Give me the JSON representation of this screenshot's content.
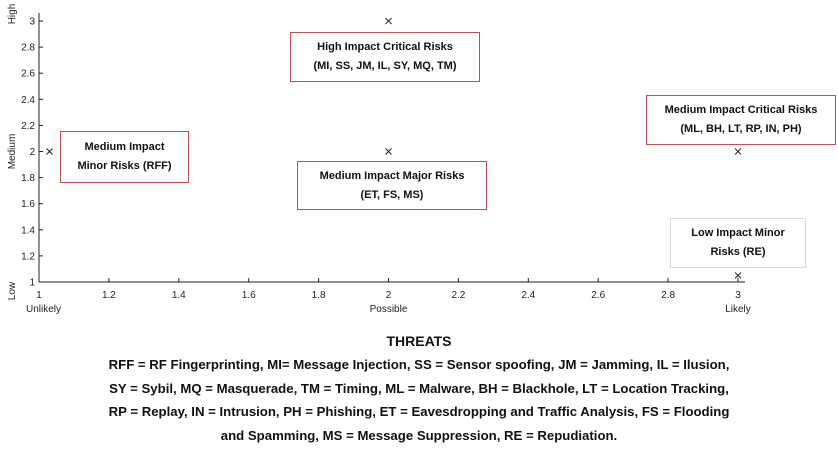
{
  "chart_data": {
    "type": "scatter",
    "title": "",
    "xlabel": "",
    "ylabel": "",
    "xlim": [
      1,
      3
    ],
    "ylim": [
      1,
      3
    ],
    "x_ticks": [
      "1",
      "1.2",
      "1.4",
      "1.6",
      "1.8",
      "2",
      "2.2",
      "2.4",
      "2.6",
      "2.8",
      "3"
    ],
    "y_ticks": [
      "1",
      "1.2",
      "1.4",
      "1.6",
      "1.8",
      "2",
      "2.2",
      "2.4",
      "2.6",
      "2.8",
      "3"
    ],
    "x_category_labels": [
      {
        "value": 1,
        "text": "Unlikely"
      },
      {
        "value": 2,
        "text": "Possible"
      },
      {
        "value": 3,
        "text": "Likely"
      }
    ],
    "y_category_labels": [
      {
        "value": 1,
        "text": "Low"
      },
      {
        "value": 2,
        "text": "Medium"
      },
      {
        "value": 3,
        "text": "High"
      }
    ],
    "grid": false,
    "marker": "x",
    "points": [
      {
        "x": 1.03,
        "y": 2
      },
      {
        "x": 2,
        "y": 3
      },
      {
        "x": 2,
        "y": 2
      },
      {
        "x": 3,
        "y": 2
      },
      {
        "x": 3,
        "y": 1.05
      }
    ],
    "annotations": [
      {
        "lines": [
          "Medium Impact",
          "Minor Risks (RFF)"
        ]
      },
      {
        "lines": [
          "High Impact Critical Risks",
          "(MI, SS, JM, IL, SY, MQ, TM)"
        ]
      },
      {
        "lines": [
          "Medium Impact Major Risks",
          "(ET, FS, MS)"
        ]
      },
      {
        "lines": [
          "Medium Impact Critical Risks",
          "(ML, BH, LT, RP, IN, PH)"
        ]
      },
      {
        "lines": [
          "Low Impact Minor",
          "Risks (RE)"
        ]
      }
    ]
  },
  "colors": {
    "annotation_border": "#c0504d",
    "annotation_border_plain": "#d9d9d9",
    "axis": "#222222"
  },
  "threats": {
    "title": "THREATS",
    "lines": [
      "RFF = RF Fingerprinting, MI= Message Injection, SS = Sensor spoofing, JM = Jamming, IL = Ilusion,",
      "SY = Sybil, MQ = Masquerade, TM = Timing, ML = Malware, BH = Blackhole, LT = Location Tracking,",
      "RP = Replay, IN = Intrusion, PH = Phishing, ET = Eavesdropping and Traffic Analysis, FS = Flooding",
      "and Spamming, MS = Message Suppression, RE = Repudiation."
    ]
  }
}
